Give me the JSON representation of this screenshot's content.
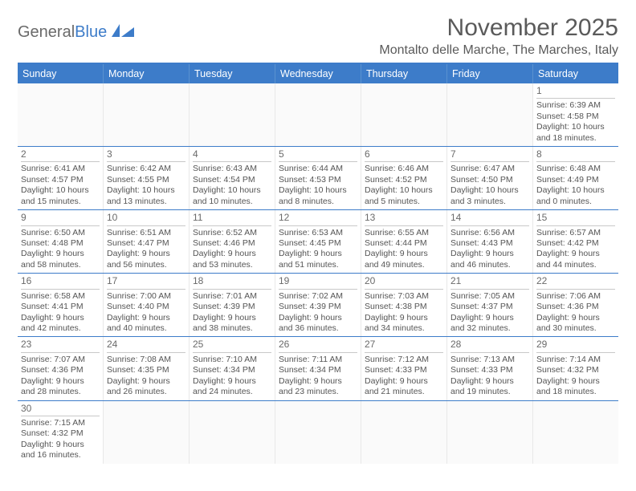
{
  "logo": {
    "general": "General",
    "blue": "Blue"
  },
  "title": "November 2025",
  "location": "Montalto delle Marche, The Marches, Italy",
  "colors": {
    "header_blue": "#3d7cc9",
    "text_gray": "#555555",
    "border_light": "#e8e8e8",
    "daynum_border": "#c8c8c8"
  },
  "weekdays": [
    "Sunday",
    "Monday",
    "Tuesday",
    "Wednesday",
    "Thursday",
    "Friday",
    "Saturday"
  ],
  "weeks": [
    [
      null,
      null,
      null,
      null,
      null,
      null,
      {
        "n": "1",
        "sr": "Sunrise: 6:39 AM",
        "ss": "Sunset: 4:58 PM",
        "d1": "Daylight: 10 hours",
        "d2": "and 18 minutes."
      }
    ],
    [
      {
        "n": "2",
        "sr": "Sunrise: 6:41 AM",
        "ss": "Sunset: 4:57 PM",
        "d1": "Daylight: 10 hours",
        "d2": "and 15 minutes."
      },
      {
        "n": "3",
        "sr": "Sunrise: 6:42 AM",
        "ss": "Sunset: 4:55 PM",
        "d1": "Daylight: 10 hours",
        "d2": "and 13 minutes."
      },
      {
        "n": "4",
        "sr": "Sunrise: 6:43 AM",
        "ss": "Sunset: 4:54 PM",
        "d1": "Daylight: 10 hours",
        "d2": "and 10 minutes."
      },
      {
        "n": "5",
        "sr": "Sunrise: 6:44 AM",
        "ss": "Sunset: 4:53 PM",
        "d1": "Daylight: 10 hours",
        "d2": "and 8 minutes."
      },
      {
        "n": "6",
        "sr": "Sunrise: 6:46 AM",
        "ss": "Sunset: 4:52 PM",
        "d1": "Daylight: 10 hours",
        "d2": "and 5 minutes."
      },
      {
        "n": "7",
        "sr": "Sunrise: 6:47 AM",
        "ss": "Sunset: 4:50 PM",
        "d1": "Daylight: 10 hours",
        "d2": "and 3 minutes."
      },
      {
        "n": "8",
        "sr": "Sunrise: 6:48 AM",
        "ss": "Sunset: 4:49 PM",
        "d1": "Daylight: 10 hours",
        "d2": "and 0 minutes."
      }
    ],
    [
      {
        "n": "9",
        "sr": "Sunrise: 6:50 AM",
        "ss": "Sunset: 4:48 PM",
        "d1": "Daylight: 9 hours",
        "d2": "and 58 minutes."
      },
      {
        "n": "10",
        "sr": "Sunrise: 6:51 AM",
        "ss": "Sunset: 4:47 PM",
        "d1": "Daylight: 9 hours",
        "d2": "and 56 minutes."
      },
      {
        "n": "11",
        "sr": "Sunrise: 6:52 AM",
        "ss": "Sunset: 4:46 PM",
        "d1": "Daylight: 9 hours",
        "d2": "and 53 minutes."
      },
      {
        "n": "12",
        "sr": "Sunrise: 6:53 AM",
        "ss": "Sunset: 4:45 PM",
        "d1": "Daylight: 9 hours",
        "d2": "and 51 minutes."
      },
      {
        "n": "13",
        "sr": "Sunrise: 6:55 AM",
        "ss": "Sunset: 4:44 PM",
        "d1": "Daylight: 9 hours",
        "d2": "and 49 minutes."
      },
      {
        "n": "14",
        "sr": "Sunrise: 6:56 AM",
        "ss": "Sunset: 4:43 PM",
        "d1": "Daylight: 9 hours",
        "d2": "and 46 minutes."
      },
      {
        "n": "15",
        "sr": "Sunrise: 6:57 AM",
        "ss": "Sunset: 4:42 PM",
        "d1": "Daylight: 9 hours",
        "d2": "and 44 minutes."
      }
    ],
    [
      {
        "n": "16",
        "sr": "Sunrise: 6:58 AM",
        "ss": "Sunset: 4:41 PM",
        "d1": "Daylight: 9 hours",
        "d2": "and 42 minutes."
      },
      {
        "n": "17",
        "sr": "Sunrise: 7:00 AM",
        "ss": "Sunset: 4:40 PM",
        "d1": "Daylight: 9 hours",
        "d2": "and 40 minutes."
      },
      {
        "n": "18",
        "sr": "Sunrise: 7:01 AM",
        "ss": "Sunset: 4:39 PM",
        "d1": "Daylight: 9 hours",
        "d2": "and 38 minutes."
      },
      {
        "n": "19",
        "sr": "Sunrise: 7:02 AM",
        "ss": "Sunset: 4:39 PM",
        "d1": "Daylight: 9 hours",
        "d2": "and 36 minutes."
      },
      {
        "n": "20",
        "sr": "Sunrise: 7:03 AM",
        "ss": "Sunset: 4:38 PM",
        "d1": "Daylight: 9 hours",
        "d2": "and 34 minutes."
      },
      {
        "n": "21",
        "sr": "Sunrise: 7:05 AM",
        "ss": "Sunset: 4:37 PM",
        "d1": "Daylight: 9 hours",
        "d2": "and 32 minutes."
      },
      {
        "n": "22",
        "sr": "Sunrise: 7:06 AM",
        "ss": "Sunset: 4:36 PM",
        "d1": "Daylight: 9 hours",
        "d2": "and 30 minutes."
      }
    ],
    [
      {
        "n": "23",
        "sr": "Sunrise: 7:07 AM",
        "ss": "Sunset: 4:36 PM",
        "d1": "Daylight: 9 hours",
        "d2": "and 28 minutes."
      },
      {
        "n": "24",
        "sr": "Sunrise: 7:08 AM",
        "ss": "Sunset: 4:35 PM",
        "d1": "Daylight: 9 hours",
        "d2": "and 26 minutes."
      },
      {
        "n": "25",
        "sr": "Sunrise: 7:10 AM",
        "ss": "Sunset: 4:34 PM",
        "d1": "Daylight: 9 hours",
        "d2": "and 24 minutes."
      },
      {
        "n": "26",
        "sr": "Sunrise: 7:11 AM",
        "ss": "Sunset: 4:34 PM",
        "d1": "Daylight: 9 hours",
        "d2": "and 23 minutes."
      },
      {
        "n": "27",
        "sr": "Sunrise: 7:12 AM",
        "ss": "Sunset: 4:33 PM",
        "d1": "Daylight: 9 hours",
        "d2": "and 21 minutes."
      },
      {
        "n": "28",
        "sr": "Sunrise: 7:13 AM",
        "ss": "Sunset: 4:33 PM",
        "d1": "Daylight: 9 hours",
        "d2": "and 19 minutes."
      },
      {
        "n": "29",
        "sr": "Sunrise: 7:14 AM",
        "ss": "Sunset: 4:32 PM",
        "d1": "Daylight: 9 hours",
        "d2": "and 18 minutes."
      }
    ],
    [
      {
        "n": "30",
        "sr": "Sunrise: 7:15 AM",
        "ss": "Sunset: 4:32 PM",
        "d1": "Daylight: 9 hours",
        "d2": "and 16 minutes."
      },
      null,
      null,
      null,
      null,
      null,
      null
    ]
  ]
}
